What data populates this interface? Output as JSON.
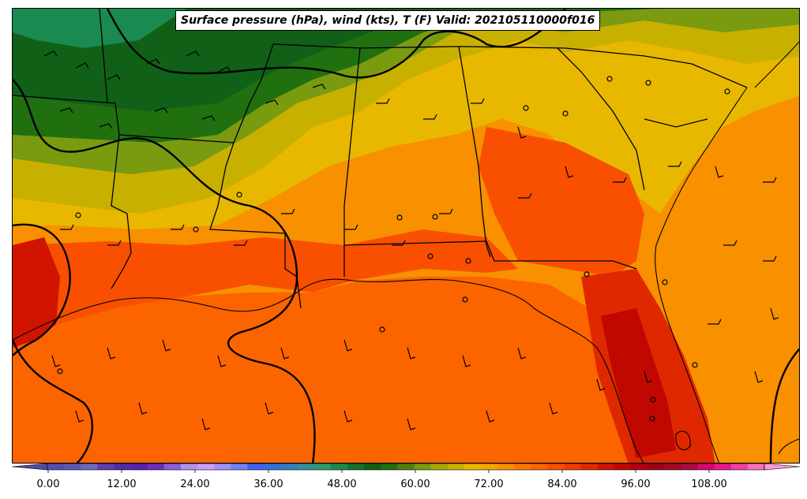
{
  "title": "Surface pressure (hPa), wind (kts), T (F) Valid: 202105110000f016",
  "colorbar": {
    "min": -6,
    "max": 123,
    "tick_labels": [
      "0.00",
      "12.00",
      "24.00",
      "36.00",
      "48.00",
      "60.00",
      "72.00",
      "84.00",
      "96.00",
      "108.00"
    ],
    "tick_values": [
      0,
      12,
      24,
      36,
      48,
      60,
      72,
      84,
      96,
      108
    ],
    "colors": [
      "#4b4ba8",
      "#5050b0",
      "#5a5ab8",
      "#6a6ac0",
      "#5b3fb0",
      "#4a2fa8",
      "#5a1fb0",
      "#6a2fc0",
      "#8a5fd8",
      "#b090f0",
      "#c8a0f8",
      "#a090f8",
      "#7080f8",
      "#4060f0",
      "#3070e0",
      "#3080c0",
      "#30909a",
      "#2a9a70",
      "#1a8a50",
      "#107030",
      "#106018",
      "#207010",
      "#508010",
      "#7a9a10",
      "#a8a800",
      "#c8b000",
      "#e8b800",
      "#f0a800",
      "#f89000",
      "#fc7800",
      "#fc6400",
      "#f85000",
      "#f03c00",
      "#e02800",
      "#d01400",
      "#c00800",
      "#b00010",
      "#a00018",
      "#a00828",
      "#b00848",
      "#d00870",
      "#e81890",
      "#f040a8",
      "#f870c0",
      "#fc98d8"
    ],
    "extend": "both"
  },
  "map": {
    "region": "Southeastern United States",
    "temperature_field_F": {
      "range": [
        52,
        100
      ]
    },
    "layers": [
      "temperature-filled-contours",
      "isobars",
      "wind-barbs",
      "state-borders",
      "coastlines"
    ]
  }
}
